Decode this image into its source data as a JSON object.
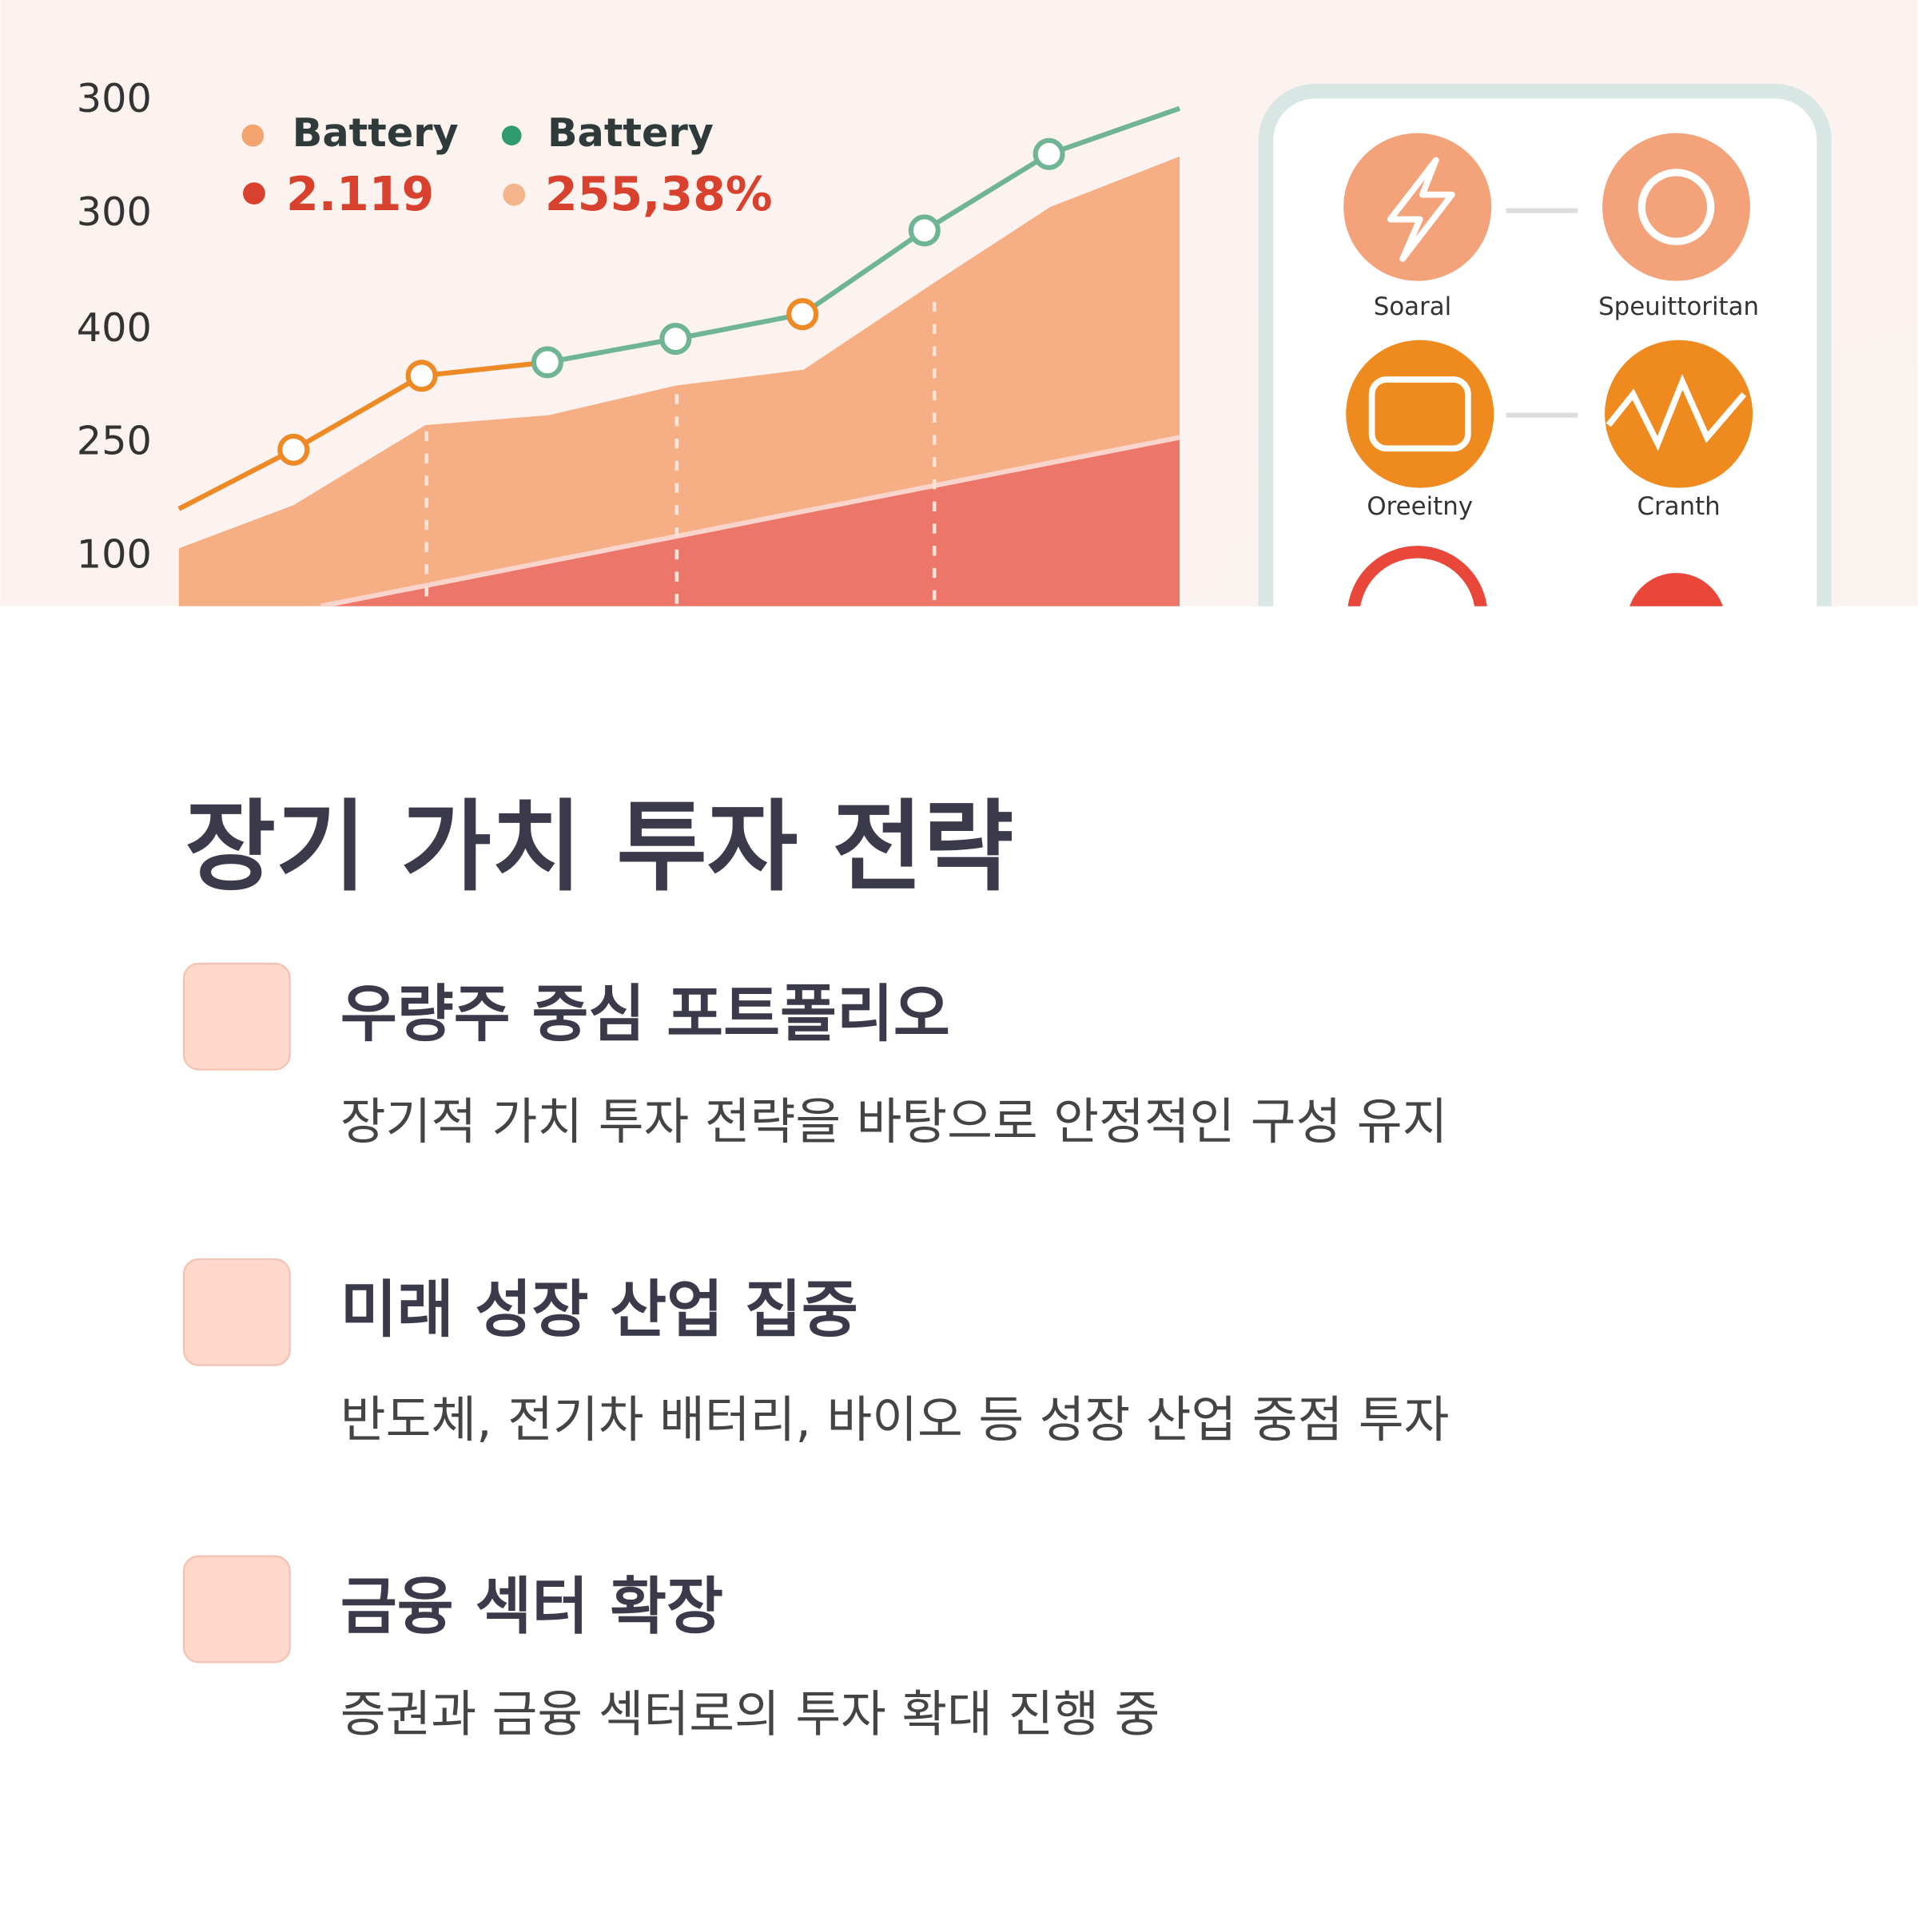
{
  "hero_image": {
    "axis_labels": [
      "300",
      "300",
      "400",
      "250",
      "100"
    ],
    "legend": [
      {
        "label": "Battery",
        "value": "2.119"
      },
      {
        "label": "Battery",
        "value": "255,38%"
      }
    ],
    "icons": [
      "Soaral",
      "Speuittoritan",
      "Oreeitny",
      "Cranth"
    ]
  },
  "section": {
    "title": "장기 가치 투자 전략",
    "items": [
      {
        "title": "우량주 중심 포트폴리오",
        "description": "장기적 가치 투자 전략을 바탕으로 안정적인 구성 유지"
      },
      {
        "title": "미래 성장 산업 집중",
        "description": "반도체, 전기차 배터리, 바이오 등 성장 산업 중점 투자"
      },
      {
        "title": "금융 섹터 확장",
        "description": "증권과 금융 섹터로의 투자 확대 진행 중"
      }
    ]
  }
}
